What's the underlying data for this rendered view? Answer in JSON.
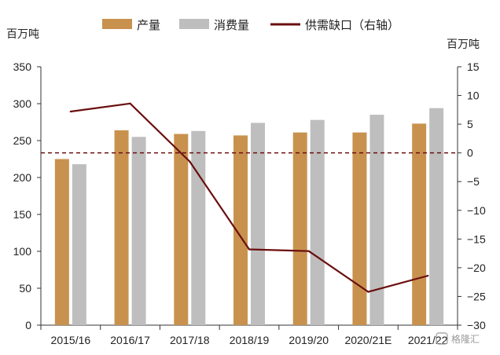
{
  "chart_data": {
    "type": "bar",
    "categories": [
      "2015/16",
      "2016/17",
      "2017/18",
      "2018/19",
      "2019/20",
      "2020/21E",
      "2021/22"
    ],
    "series": [
      {
        "name": "产量",
        "type": "bar",
        "axis": "left",
        "color": "#C8924E",
        "values": [
          225,
          264,
          259,
          257,
          261,
          261,
          273
        ]
      },
      {
        "name": "消费量",
        "type": "bar",
        "axis": "left",
        "color": "#BEBEBE",
        "values": [
          218,
          255,
          263,
          274,
          278,
          285,
          294
        ]
      },
      {
        "name": "供需缺口（右轴）",
        "type": "line",
        "axis": "right",
        "color": "#6B0F0F",
        "values": [
          7.2,
          8.6,
          -1.5,
          -16.8,
          -17.1,
          -24.2,
          -21.4
        ]
      }
    ],
    "zero_reference_line": {
      "axis": "right",
      "value": 0,
      "style": "dashed",
      "color": "#6B0F0F"
    },
    "left_axis": {
      "unit": "百万吨",
      "ylim": [
        0,
        350
      ],
      "ticks": [
        0,
        50,
        100,
        150,
        200,
        250,
        300,
        350
      ]
    },
    "right_axis": {
      "unit": "百万吨",
      "ylim": [
        -30,
        15
      ],
      "ticks": [
        -30,
        -25,
        -20,
        -15,
        -10,
        -5,
        0,
        5,
        10,
        15
      ]
    },
    "title": "",
    "legend_position": "top",
    "grid": false
  },
  "watermark": {
    "text": "格隆汇",
    "icon": "gelonghui-logo-icon"
  }
}
